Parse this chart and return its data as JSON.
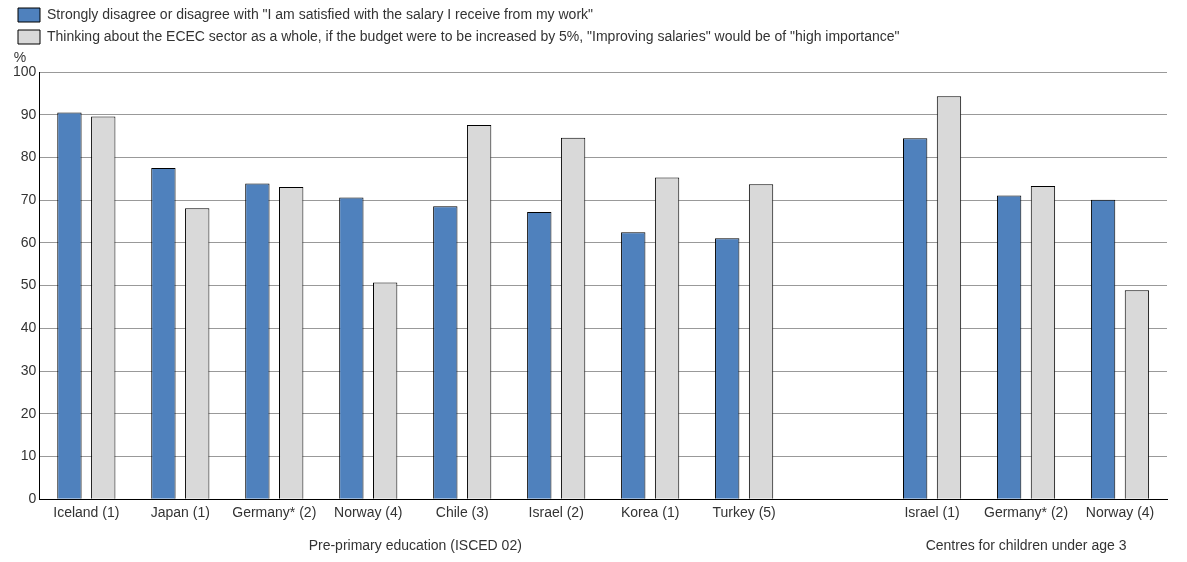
{
  "chart_data": {
    "type": "bar",
    "ylabel": "%",
    "categories": [
      "Iceland (1)",
      "Japan (1)",
      "Germany* (2)",
      "Norway (4)",
      "Chile (3)",
      "Israel (2)",
      "Korea (1)",
      "Turkey (5)",
      null,
      "Israel (1)",
      "Germany* (2)",
      "Norway (4)"
    ],
    "series": [
      {
        "name": "Strongly disagree or disagree with \"I am satisfied with the salary I receive from my work\"",
        "color": "#4f81bd",
        "values": [
          90.5,
          77.5,
          73.9,
          70.6,
          68.6,
          67.2,
          62.5,
          61.1,
          null,
          84.5,
          71.1,
          70.1
        ]
      },
      {
        "name": "Thinking about the ECEC sector as a whole, if the budget were to be increased by 5%, \"Improving salaries\" would be of \"high importance\"",
        "color": "#d9d9d9",
        "values": [
          89.6,
          68.1,
          73.1,
          50.7,
          87.6,
          84.6,
          75.3,
          73.7,
          null,
          94.3,
          73.3,
          48.9
        ]
      }
    ],
    "ylim": [
      0,
      100
    ],
    "yticks": [
      0,
      10,
      20,
      30,
      40,
      50,
      60,
      70,
      80,
      90,
      100
    ],
    "grid": "y",
    "legend": "top left",
    "annotations": [
      "Pre-primary education (ISCED 02)",
      "Centres for children under age 3"
    ]
  }
}
